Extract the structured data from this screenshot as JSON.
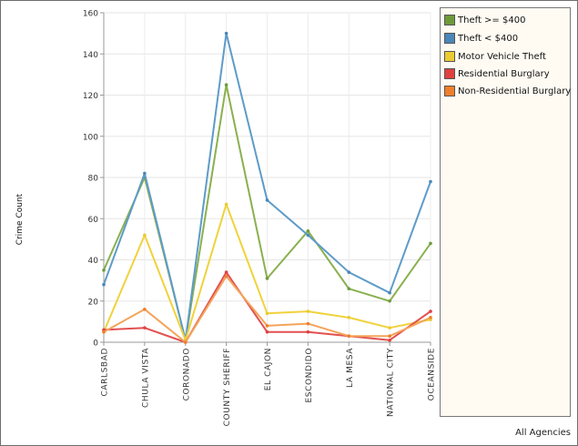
{
  "chart_data": {
    "type": "line",
    "title": "",
    "xlabel": "",
    "ylabel": "Crime Count",
    "ylim": [
      0,
      160
    ],
    "yticks": [
      0,
      20,
      40,
      60,
      80,
      100,
      120,
      140,
      160
    ],
    "grid": true,
    "legend_position": "right",
    "footer": "All Agencies",
    "categories": [
      "CARLSBAD",
      "CHULA VISTA",
      "CORONADO",
      "COUNTY SHERIFF",
      "EL CAJON",
      "ESCONDIDO",
      "LA MESA",
      "NATIONAL CITY",
      "OCEANSIDE"
    ],
    "series": [
      {
        "name": "Theft >= $400",
        "color": "#8ab04f",
        "swatch": "#6f9a3a",
        "values": [
          35,
          80,
          1,
          125,
          31,
          54,
          26,
          20,
          48
        ]
      },
      {
        "name": "Theft < $400",
        "color": "#5e9bc8",
        "swatch": "#4a86b8",
        "values": [
          28,
          82,
          1,
          150,
          69,
          52,
          34,
          24,
          78
        ]
      },
      {
        "name": "Motor Vehicle Theft",
        "color": "#f0d23c",
        "swatch": "#eacb32",
        "values": [
          5,
          52,
          1,
          67,
          14,
          15,
          12,
          7,
          11
        ]
      },
      {
        "name": "Residential Burglary",
        "color": "#e25050",
        "swatch": "#e0403f",
        "values": [
          6,
          7,
          0,
          34,
          5,
          5,
          3,
          1,
          15
        ]
      },
      {
        "name": "Non-Residential Burglary",
        "color": "#f3a45a",
        "swatch": "#f07f2c",
        "values": [
          5,
          16,
          0,
          32,
          8,
          9,
          3,
          3,
          12
        ]
      }
    ]
  }
}
